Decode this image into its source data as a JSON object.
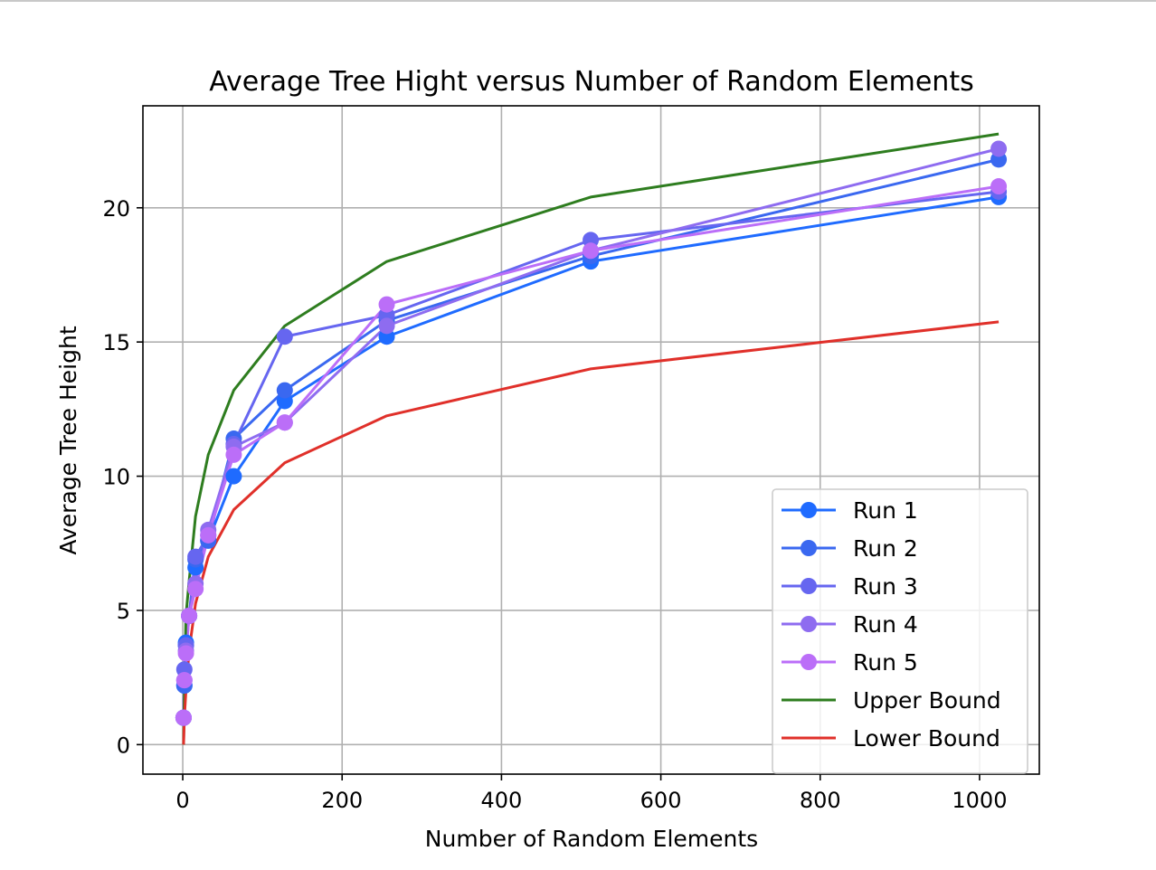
{
  "chart_data": {
    "type": "line",
    "title": "Average Tree Hight versus Number of Random Elements",
    "xlabel": "Number of Random Elements",
    "ylabel": "Average Tree Height",
    "xlim": [
      -50,
      1075
    ],
    "ylim": [
      -1.1,
      23.8
    ],
    "xticks": [
      0,
      200,
      400,
      600,
      800,
      1000
    ],
    "yticks": [
      0,
      5,
      10,
      15,
      20
    ],
    "grid": true,
    "legend_position": "lower-right",
    "x": [
      1,
      2,
      4,
      8,
      16,
      32,
      64,
      128,
      256,
      512,
      1024
    ],
    "series": [
      {
        "name": "Run 1",
        "color": "#1f6bff",
        "marker": true,
        "values": [
          1,
          2.2,
          3.8,
          4.8,
          6.6,
          7.6,
          10.0,
          12.8,
          15.2,
          18.0,
          20.4
        ]
      },
      {
        "name": "Run 2",
        "color": "#3a68f0",
        "marker": true,
        "values": [
          1,
          2.2,
          3.7,
          4.8,
          6.9,
          7.6,
          11.4,
          13.2,
          15.8,
          18.2,
          21.8
        ]
      },
      {
        "name": "Run 3",
        "color": "#6666f0",
        "marker": true,
        "values": [
          1,
          2.8,
          3.7,
          4.8,
          7.0,
          7.8,
          11.2,
          15.2,
          16.0,
          18.8,
          20.6
        ]
      },
      {
        "name": "Run 4",
        "color": "#8e6cf0",
        "marker": true,
        "values": [
          1,
          2.4,
          3.5,
          4.8,
          6.0,
          8.0,
          11.1,
          12.0,
          15.6,
          18.4,
          22.2
        ]
      },
      {
        "name": "Run 5",
        "color": "#bb6ef8",
        "marker": true,
        "values": [
          1,
          2.4,
          3.4,
          4.8,
          5.8,
          7.8,
          10.8,
          12.0,
          16.4,
          18.4,
          20.8
        ]
      },
      {
        "name": "Upper Bound",
        "color": "#2e7d1f",
        "marker": false,
        "values": [
          0,
          2.0,
          4.8,
          6.1,
          8.5,
          10.8,
          13.2,
          15.6,
          18.0,
          20.4,
          22.75
        ]
      },
      {
        "name": "Lower Bound",
        "color": "#e0302a",
        "marker": false,
        "values": [
          0,
          1.0,
          2.0,
          3.5,
          5.25,
          7.0,
          8.75,
          10.5,
          12.25,
          14.0,
          15.75
        ]
      }
    ]
  }
}
